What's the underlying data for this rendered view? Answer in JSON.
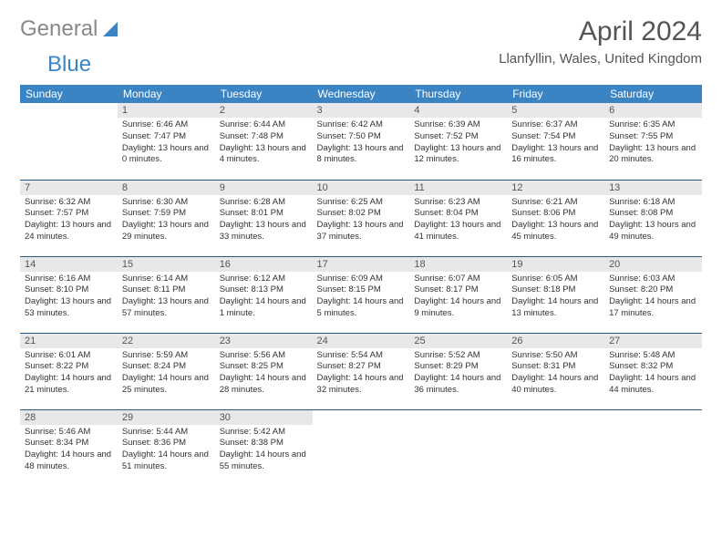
{
  "logo": {
    "text1": "General",
    "text2": "Blue"
  },
  "title": "April 2024",
  "location": "Llanfyllin, Wales, United Kingdom",
  "colors": {
    "header_bg": "#3a84c4",
    "header_text": "#ffffff",
    "daynum_bg": "#e8e8e8",
    "border": "#2a5a8a",
    "logo_blue": "#3a84c4"
  },
  "daysOfWeek": [
    "Sunday",
    "Monday",
    "Tuesday",
    "Wednesday",
    "Thursday",
    "Friday",
    "Saturday"
  ],
  "weeks": [
    [
      null,
      {
        "n": "1",
        "sr": "6:46 AM",
        "ss": "7:47 PM",
        "dl": "13 hours and 0 minutes."
      },
      {
        "n": "2",
        "sr": "6:44 AM",
        "ss": "7:48 PM",
        "dl": "13 hours and 4 minutes."
      },
      {
        "n": "3",
        "sr": "6:42 AM",
        "ss": "7:50 PM",
        "dl": "13 hours and 8 minutes."
      },
      {
        "n": "4",
        "sr": "6:39 AM",
        "ss": "7:52 PM",
        "dl": "13 hours and 12 minutes."
      },
      {
        "n": "5",
        "sr": "6:37 AM",
        "ss": "7:54 PM",
        "dl": "13 hours and 16 minutes."
      },
      {
        "n": "6",
        "sr": "6:35 AM",
        "ss": "7:55 PM",
        "dl": "13 hours and 20 minutes."
      }
    ],
    [
      {
        "n": "7",
        "sr": "6:32 AM",
        "ss": "7:57 PM",
        "dl": "13 hours and 24 minutes."
      },
      {
        "n": "8",
        "sr": "6:30 AM",
        "ss": "7:59 PM",
        "dl": "13 hours and 29 minutes."
      },
      {
        "n": "9",
        "sr": "6:28 AM",
        "ss": "8:01 PM",
        "dl": "13 hours and 33 minutes."
      },
      {
        "n": "10",
        "sr": "6:25 AM",
        "ss": "8:02 PM",
        "dl": "13 hours and 37 minutes."
      },
      {
        "n": "11",
        "sr": "6:23 AM",
        "ss": "8:04 PM",
        "dl": "13 hours and 41 minutes."
      },
      {
        "n": "12",
        "sr": "6:21 AM",
        "ss": "8:06 PM",
        "dl": "13 hours and 45 minutes."
      },
      {
        "n": "13",
        "sr": "6:18 AM",
        "ss": "8:08 PM",
        "dl": "13 hours and 49 minutes."
      }
    ],
    [
      {
        "n": "14",
        "sr": "6:16 AM",
        "ss": "8:10 PM",
        "dl": "13 hours and 53 minutes."
      },
      {
        "n": "15",
        "sr": "6:14 AM",
        "ss": "8:11 PM",
        "dl": "13 hours and 57 minutes."
      },
      {
        "n": "16",
        "sr": "6:12 AM",
        "ss": "8:13 PM",
        "dl": "14 hours and 1 minute."
      },
      {
        "n": "17",
        "sr": "6:09 AM",
        "ss": "8:15 PM",
        "dl": "14 hours and 5 minutes."
      },
      {
        "n": "18",
        "sr": "6:07 AM",
        "ss": "8:17 PM",
        "dl": "14 hours and 9 minutes."
      },
      {
        "n": "19",
        "sr": "6:05 AM",
        "ss": "8:18 PM",
        "dl": "14 hours and 13 minutes."
      },
      {
        "n": "20",
        "sr": "6:03 AM",
        "ss": "8:20 PM",
        "dl": "14 hours and 17 minutes."
      }
    ],
    [
      {
        "n": "21",
        "sr": "6:01 AM",
        "ss": "8:22 PM",
        "dl": "14 hours and 21 minutes."
      },
      {
        "n": "22",
        "sr": "5:59 AM",
        "ss": "8:24 PM",
        "dl": "14 hours and 25 minutes."
      },
      {
        "n": "23",
        "sr": "5:56 AM",
        "ss": "8:25 PM",
        "dl": "14 hours and 28 minutes."
      },
      {
        "n": "24",
        "sr": "5:54 AM",
        "ss": "8:27 PM",
        "dl": "14 hours and 32 minutes."
      },
      {
        "n": "25",
        "sr": "5:52 AM",
        "ss": "8:29 PM",
        "dl": "14 hours and 36 minutes."
      },
      {
        "n": "26",
        "sr": "5:50 AM",
        "ss": "8:31 PM",
        "dl": "14 hours and 40 minutes."
      },
      {
        "n": "27",
        "sr": "5:48 AM",
        "ss": "8:32 PM",
        "dl": "14 hours and 44 minutes."
      }
    ],
    [
      {
        "n": "28",
        "sr": "5:46 AM",
        "ss": "8:34 PM",
        "dl": "14 hours and 48 minutes."
      },
      {
        "n": "29",
        "sr": "5:44 AM",
        "ss": "8:36 PM",
        "dl": "14 hours and 51 minutes."
      },
      {
        "n": "30",
        "sr": "5:42 AM",
        "ss": "8:38 PM",
        "dl": "14 hours and 55 minutes."
      },
      null,
      null,
      null,
      null
    ]
  ],
  "labels": {
    "sunrise": "Sunrise:",
    "sunset": "Sunset:",
    "daylight": "Daylight:"
  }
}
